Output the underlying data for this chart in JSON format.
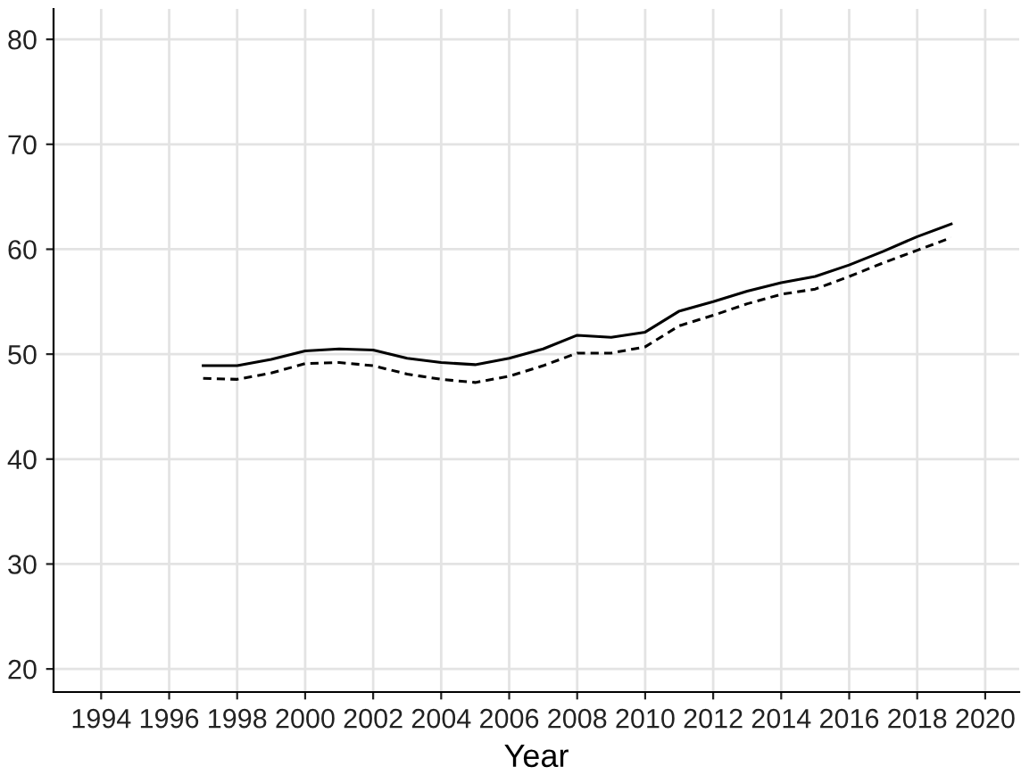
{
  "chart_data": {
    "type": "line",
    "xlabel": "Year",
    "x": [
      1997,
      1998,
      1999,
      2000,
      2001,
      2002,
      2003,
      2004,
      2005,
      2006,
      2007,
      2008,
      2009,
      2010,
      2011,
      2012,
      2013,
      2014,
      2015,
      2016,
      2017,
      2018,
      2019
    ],
    "series": [
      {
        "color": "#000000",
        "line_style": "solid",
        "values": [
          48.9,
          48.9,
          49.5,
          50.3,
          50.5,
          50.4,
          49.6,
          49.2,
          49.0,
          49.6,
          50.5,
          51.8,
          51.6,
          52.1,
          54.1,
          55.0,
          56.0,
          56.8,
          57.4,
          58.5,
          59.8,
          61.2,
          62.4
        ]
      },
      {
        "color": "#000000",
        "line_style": "dashed",
        "values": [
          47.7,
          47.6,
          48.2,
          49.1,
          49.2,
          48.9,
          48.1,
          47.6,
          47.3,
          47.9,
          48.9,
          50.1,
          50.1,
          50.7,
          52.7,
          53.7,
          54.8,
          55.7,
          56.2,
          57.4,
          58.7,
          59.9,
          61.1
        ]
      }
    ],
    "xlim": [
      1992.6,
      2021
    ],
    "xticks": [
      1994,
      1996,
      1998,
      2000,
      2002,
      2004,
      2006,
      2008,
      2010,
      2012,
      2014,
      2016,
      2018,
      2020
    ],
    "ylim": [
      17.8,
      82.9
    ],
    "yticks": [
      20,
      30,
      40,
      50,
      60,
      70,
      80
    ],
    "grid": true,
    "marker": "none"
  }
}
